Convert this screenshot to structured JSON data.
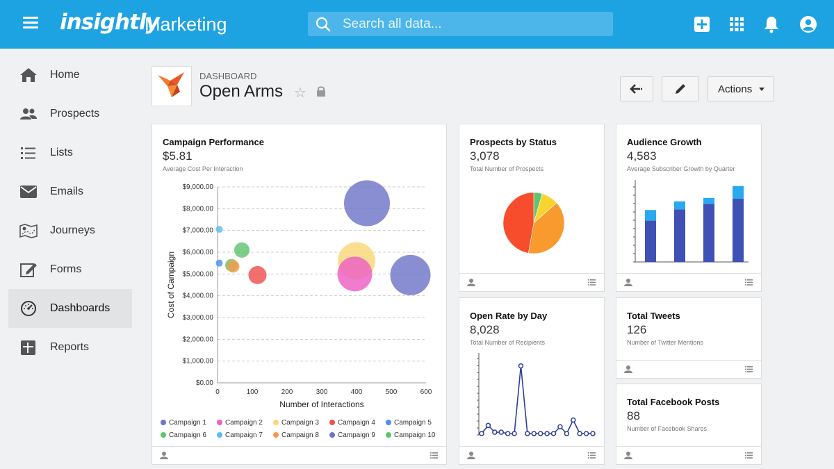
{
  "topbar": {
    "logo": "insightly",
    "app_name": "Marketing",
    "search_placeholder": "Search all data..."
  },
  "sidebar": {
    "items": [
      {
        "label": "Home",
        "icon": "home-icon"
      },
      {
        "label": "Prospects",
        "icon": "people-icon"
      },
      {
        "label": "Lists",
        "icon": "list-icon"
      },
      {
        "label": "Emails",
        "icon": "envelope-icon"
      },
      {
        "label": "Journeys",
        "icon": "map-icon"
      },
      {
        "label": "Forms",
        "icon": "form-edit-icon"
      },
      {
        "label": "Dashboards",
        "icon": "gauge-icon",
        "active": true
      },
      {
        "label": "Reports",
        "icon": "report-icon"
      }
    ]
  },
  "header": {
    "kicker": "DASHBOARD",
    "title": "Open Arms",
    "actions_label": "Actions"
  },
  "cards": {
    "campaign": {
      "title": "Campaign Performance",
      "value": "$5.81",
      "subtitle": "Average Cost Per Interaction"
    },
    "prospects": {
      "title": "Prospects by Status",
      "value": "3,078",
      "subtitle": "Total Number of Prospects"
    },
    "audience": {
      "title": "Audience Growth",
      "value": "4,583",
      "subtitle": "Average Subscriber Growth by Quarter"
    },
    "openrate": {
      "title": "Open Rate by Day",
      "value": "8,028",
      "subtitle": "Total Number of Recipients"
    },
    "tweets": {
      "title": "Total Tweets",
      "value": "126",
      "subtitle": "Number of Twitter Mentions"
    },
    "facebook": {
      "title": "Total Facebook Posts",
      "value": "88",
      "subtitle": "Number of Facebook Shares"
    }
  },
  "chart_data": [
    {
      "type": "scatter",
      "title": "Campaign Performance",
      "xlabel": "Number of Interactions",
      "ylabel": "Cost of Campaign",
      "xlim": [
        0,
        600
      ],
      "ylim": [
        0,
        9000
      ],
      "x_ticks": [
        "0",
        "100",
        "200",
        "300",
        "400",
        "500",
        "600"
      ],
      "y_ticks": [
        "$0.00",
        "$1,000.00",
        "$2,000.00",
        "$3,000.00",
        "$4,000.00",
        "$5,000.00",
        "$6,000.00",
        "$7,000.00",
        "$8,000.00",
        "$9,000.00"
      ],
      "grid": true,
      "legend_position": "bottom",
      "series": [
        {
          "name": "Campaign 1",
          "color": "#6f74c8",
          "points": [
            {
              "x": 430,
              "y": 8250,
              "r": 33
            },
            {
              "x": 555,
              "y": 4950,
              "r": 29
            }
          ]
        },
        {
          "name": "Campaign 2",
          "color": "#ee5fc4",
          "points": [
            {
              "x": 395,
              "y": 5000,
              "r": 25
            }
          ]
        },
        {
          "name": "Campaign 3",
          "color": "#f9d77a",
          "points": [
            {
              "x": 400,
              "y": 5600,
              "r": 27
            }
          ]
        },
        {
          "name": "Campaign 4",
          "color": "#ef4f4f",
          "points": [
            {
              "x": 115,
              "y": 4950,
              "r": 13
            }
          ]
        },
        {
          "name": "Campaign 5",
          "color": "#4c8ef2",
          "points": [
            {
              "x": 5,
              "y": 5500,
              "r": 5
            }
          ]
        },
        {
          "name": "Campaign 6",
          "color": "#5ec46e",
          "points": [
            {
              "x": 70,
              "y": 6100,
              "r": 11
            },
            {
              "x": 40,
              "y": 5400,
              "r": 9
            }
          ]
        },
        {
          "name": "Campaign 7",
          "color": "#5bbdf0",
          "points": [
            {
              "x": 5,
              "y": 7050,
              "r": 5
            }
          ]
        },
        {
          "name": "Campaign 8",
          "color": "#f59a4b",
          "points": [
            {
              "x": 45,
              "y": 5350,
              "r": 9
            }
          ]
        },
        {
          "name": "Campaign 9",
          "color": "#6f74c8",
          "points": []
        },
        {
          "name": "Campaign 10",
          "color": "#5ec46e",
          "points": []
        }
      ]
    },
    {
      "type": "pie",
      "title": "Prospects by Status",
      "slices": [
        {
          "value": 4,
          "color": "#5ec46e"
        },
        {
          "value": 8,
          "color": "#fbd32e"
        },
        {
          "value": 35,
          "color": "#f99a2e"
        },
        {
          "value": 42,
          "color": "#f74d2c"
        }
      ]
    },
    {
      "type": "bar",
      "title": "Audience Growth",
      "stacked": true,
      "series": [
        {
          "color": "#3f51b5",
          "values": [
            62,
            79,
            87,
            95
          ]
        },
        {
          "color": "#29a9ee",
          "values": [
            16,
            12,
            9,
            19
          ]
        }
      ],
      "ylim": [
        0,
        120
      ]
    },
    {
      "type": "line",
      "title": "Open Rate by Day",
      "color": "#2c3e99",
      "values": [
        0,
        12,
        2,
        2,
        0,
        0,
        100,
        0,
        0,
        0,
        0,
        0,
        10,
        0,
        20,
        0,
        0,
        0
      ],
      "ylim": [
        0,
        115
      ]
    }
  ]
}
